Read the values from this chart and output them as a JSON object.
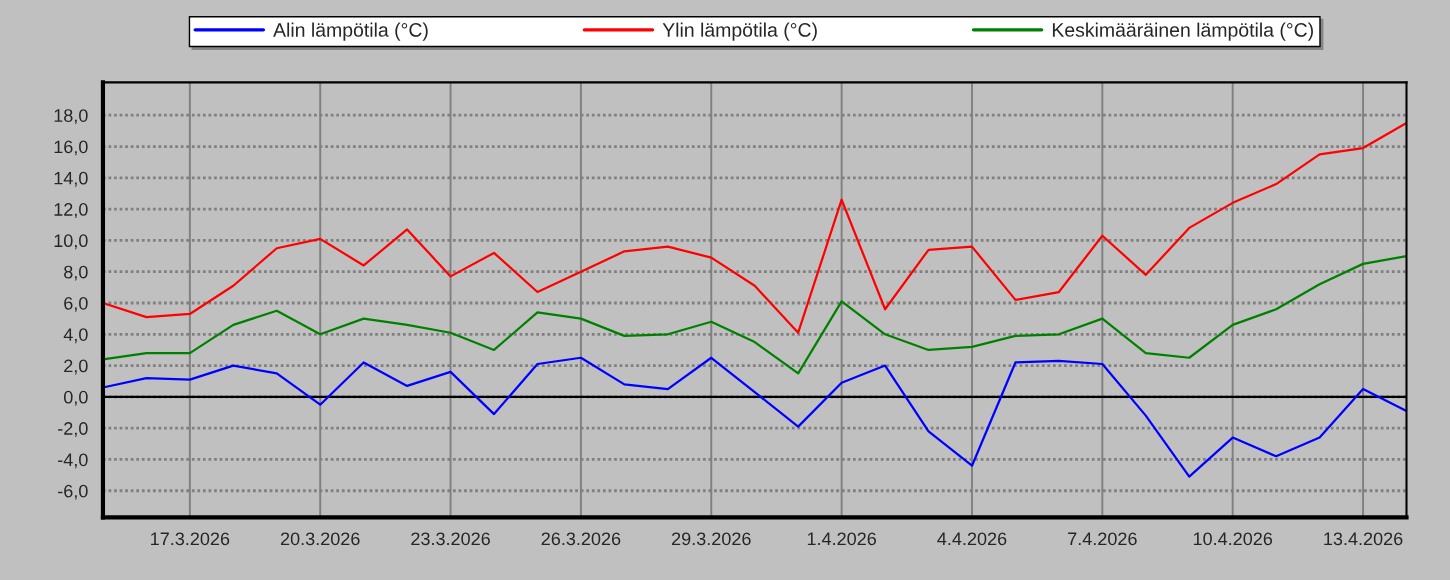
{
  "chart_data": {
    "type": "line",
    "x": [
      "2026-03-15",
      "2026-03-16",
      "2026-03-17",
      "2026-03-18",
      "2026-03-19",
      "2026-03-20",
      "2026-03-21",
      "2026-03-22",
      "2026-03-23",
      "2026-03-24",
      "2026-03-25",
      "2026-03-26",
      "2026-03-27",
      "2026-03-28",
      "2026-03-29",
      "2026-03-30",
      "2026-03-31",
      "2026-04-01",
      "2026-04-02",
      "2026-04-03",
      "2026-04-04",
      "2026-04-05",
      "2026-04-06",
      "2026-04-07",
      "2026-04-08",
      "2026-04-09",
      "2026-04-10",
      "2026-04-11",
      "2026-04-12",
      "2026-04-13",
      "2026-04-14"
    ],
    "series": [
      {
        "name": "Alin lämpötila (°C)",
        "color": "#0000ff",
        "values": [
          0.6,
          1.2,
          1.1,
          2.0,
          1.5,
          -0.5,
          2.2,
          0.7,
          1.6,
          -1.1,
          2.1,
          2.5,
          0.8,
          0.5,
          2.5,
          0.3,
          -1.9,
          0.9,
          2.0,
          -2.2,
          -4.4,
          2.2,
          2.3,
          2.1,
          -1.2,
          -5.1,
          -2.6,
          -3.8,
          -2.6,
          0.5,
          -0.9
        ]
      },
      {
        "name": "Ylin lämpötila (°C)",
        "color": "#ff0000",
        "values": [
          6.0,
          5.1,
          5.3,
          7.1,
          9.5,
          10.1,
          8.4,
          10.7,
          7.7,
          9.2,
          6.7,
          8.0,
          9.3,
          9.6,
          8.9,
          7.1,
          4.1,
          12.6,
          5.6,
          9.4,
          9.6,
          6.2,
          6.7,
          10.3,
          7.8,
          10.8,
          12.4,
          13.6,
          15.5,
          15.9,
          17.5
        ]
      },
      {
        "name": "Keskimääräinen lämpötila (°C)",
        "color": "#008000",
        "values": [
          2.4,
          2.8,
          2.8,
          4.6,
          5.5,
          4.0,
          5.0,
          4.6,
          4.1,
          3.0,
          5.4,
          5.0,
          3.9,
          4.0,
          4.8,
          3.5,
          1.5,
          6.1,
          4.0,
          3.0,
          3.2,
          3.9,
          4.0,
          5.0,
          2.8,
          2.5,
          4.6,
          5.6,
          7.2,
          8.5,
          9.0
        ]
      }
    ],
    "xlim": [
      "2026-03-15",
      "2026-04-14"
    ],
    "xticks": [
      {
        "value": "2026-03-17",
        "label": "17.3.2026"
      },
      {
        "value": "2026-03-20",
        "label": "20.3.2026"
      },
      {
        "value": "2026-03-23",
        "label": "23.3.2026"
      },
      {
        "value": "2026-03-26",
        "label": "26.3.2026"
      },
      {
        "value": "2026-03-29",
        "label": "29.3.2026"
      },
      {
        "value": "2026-04-01",
        "label": "1.4.2026"
      },
      {
        "value": "2026-04-04",
        "label": "4.4.2026"
      },
      {
        "value": "2026-04-07",
        "label": "7.4.2026"
      },
      {
        "value": "2026-04-10",
        "label": "10.4.2026"
      },
      {
        "value": "2026-04-13",
        "label": "13.4.2026"
      }
    ],
    "ylim": [
      -7.7,
      20.1
    ],
    "yticks": [
      {
        "value": -6,
        "label": "-6,0"
      },
      {
        "value": -4,
        "label": "-4,0"
      },
      {
        "value": -2,
        "label": "-2,0"
      },
      {
        "value": 0,
        "label": "0,0"
      },
      {
        "value": 2,
        "label": "2,0"
      },
      {
        "value": 4,
        "label": "4,0"
      },
      {
        "value": 6,
        "label": "6,0"
      },
      {
        "value": 8,
        "label": "8,0"
      },
      {
        "value": 10,
        "label": "10,0"
      },
      {
        "value": 12,
        "label": "12,0"
      },
      {
        "value": 14,
        "label": "14,0"
      },
      {
        "value": 16,
        "label": "16,0"
      },
      {
        "value": 18,
        "label": "18,0"
      }
    ],
    "ref_lines": [
      {
        "axis": "y",
        "value": 0,
        "color": "#000000",
        "line_style": "solid"
      }
    ],
    "grid": true,
    "legend": "top",
    "marker": "none",
    "line_style": "solid"
  }
}
